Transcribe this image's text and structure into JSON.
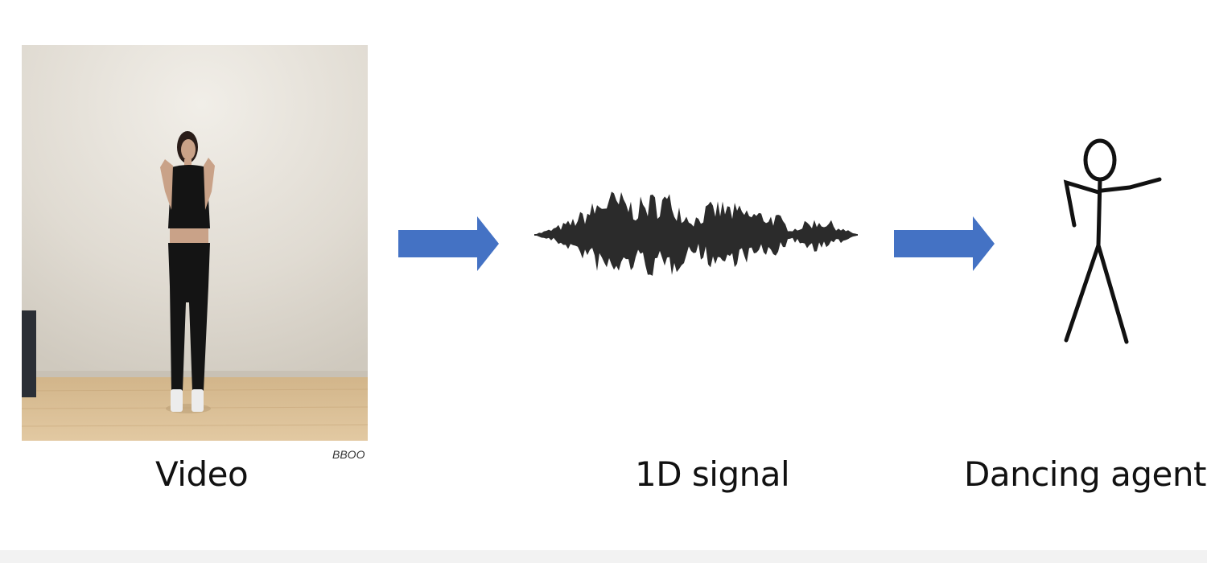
{
  "captions": {
    "video": "Video",
    "signal": "1D signal",
    "agent": "Dancing agent"
  },
  "video_watermark": "BBOO",
  "icons": {
    "arrow_left": "right-arrow-icon",
    "arrow_right": "right-arrow-icon",
    "waveform": "audio-waveform-icon",
    "agent": "stick-figure-icon"
  },
  "colors": {
    "arrow": "#4472C4",
    "waveform": "#2b2b2b",
    "stick_figure": "#111111"
  }
}
